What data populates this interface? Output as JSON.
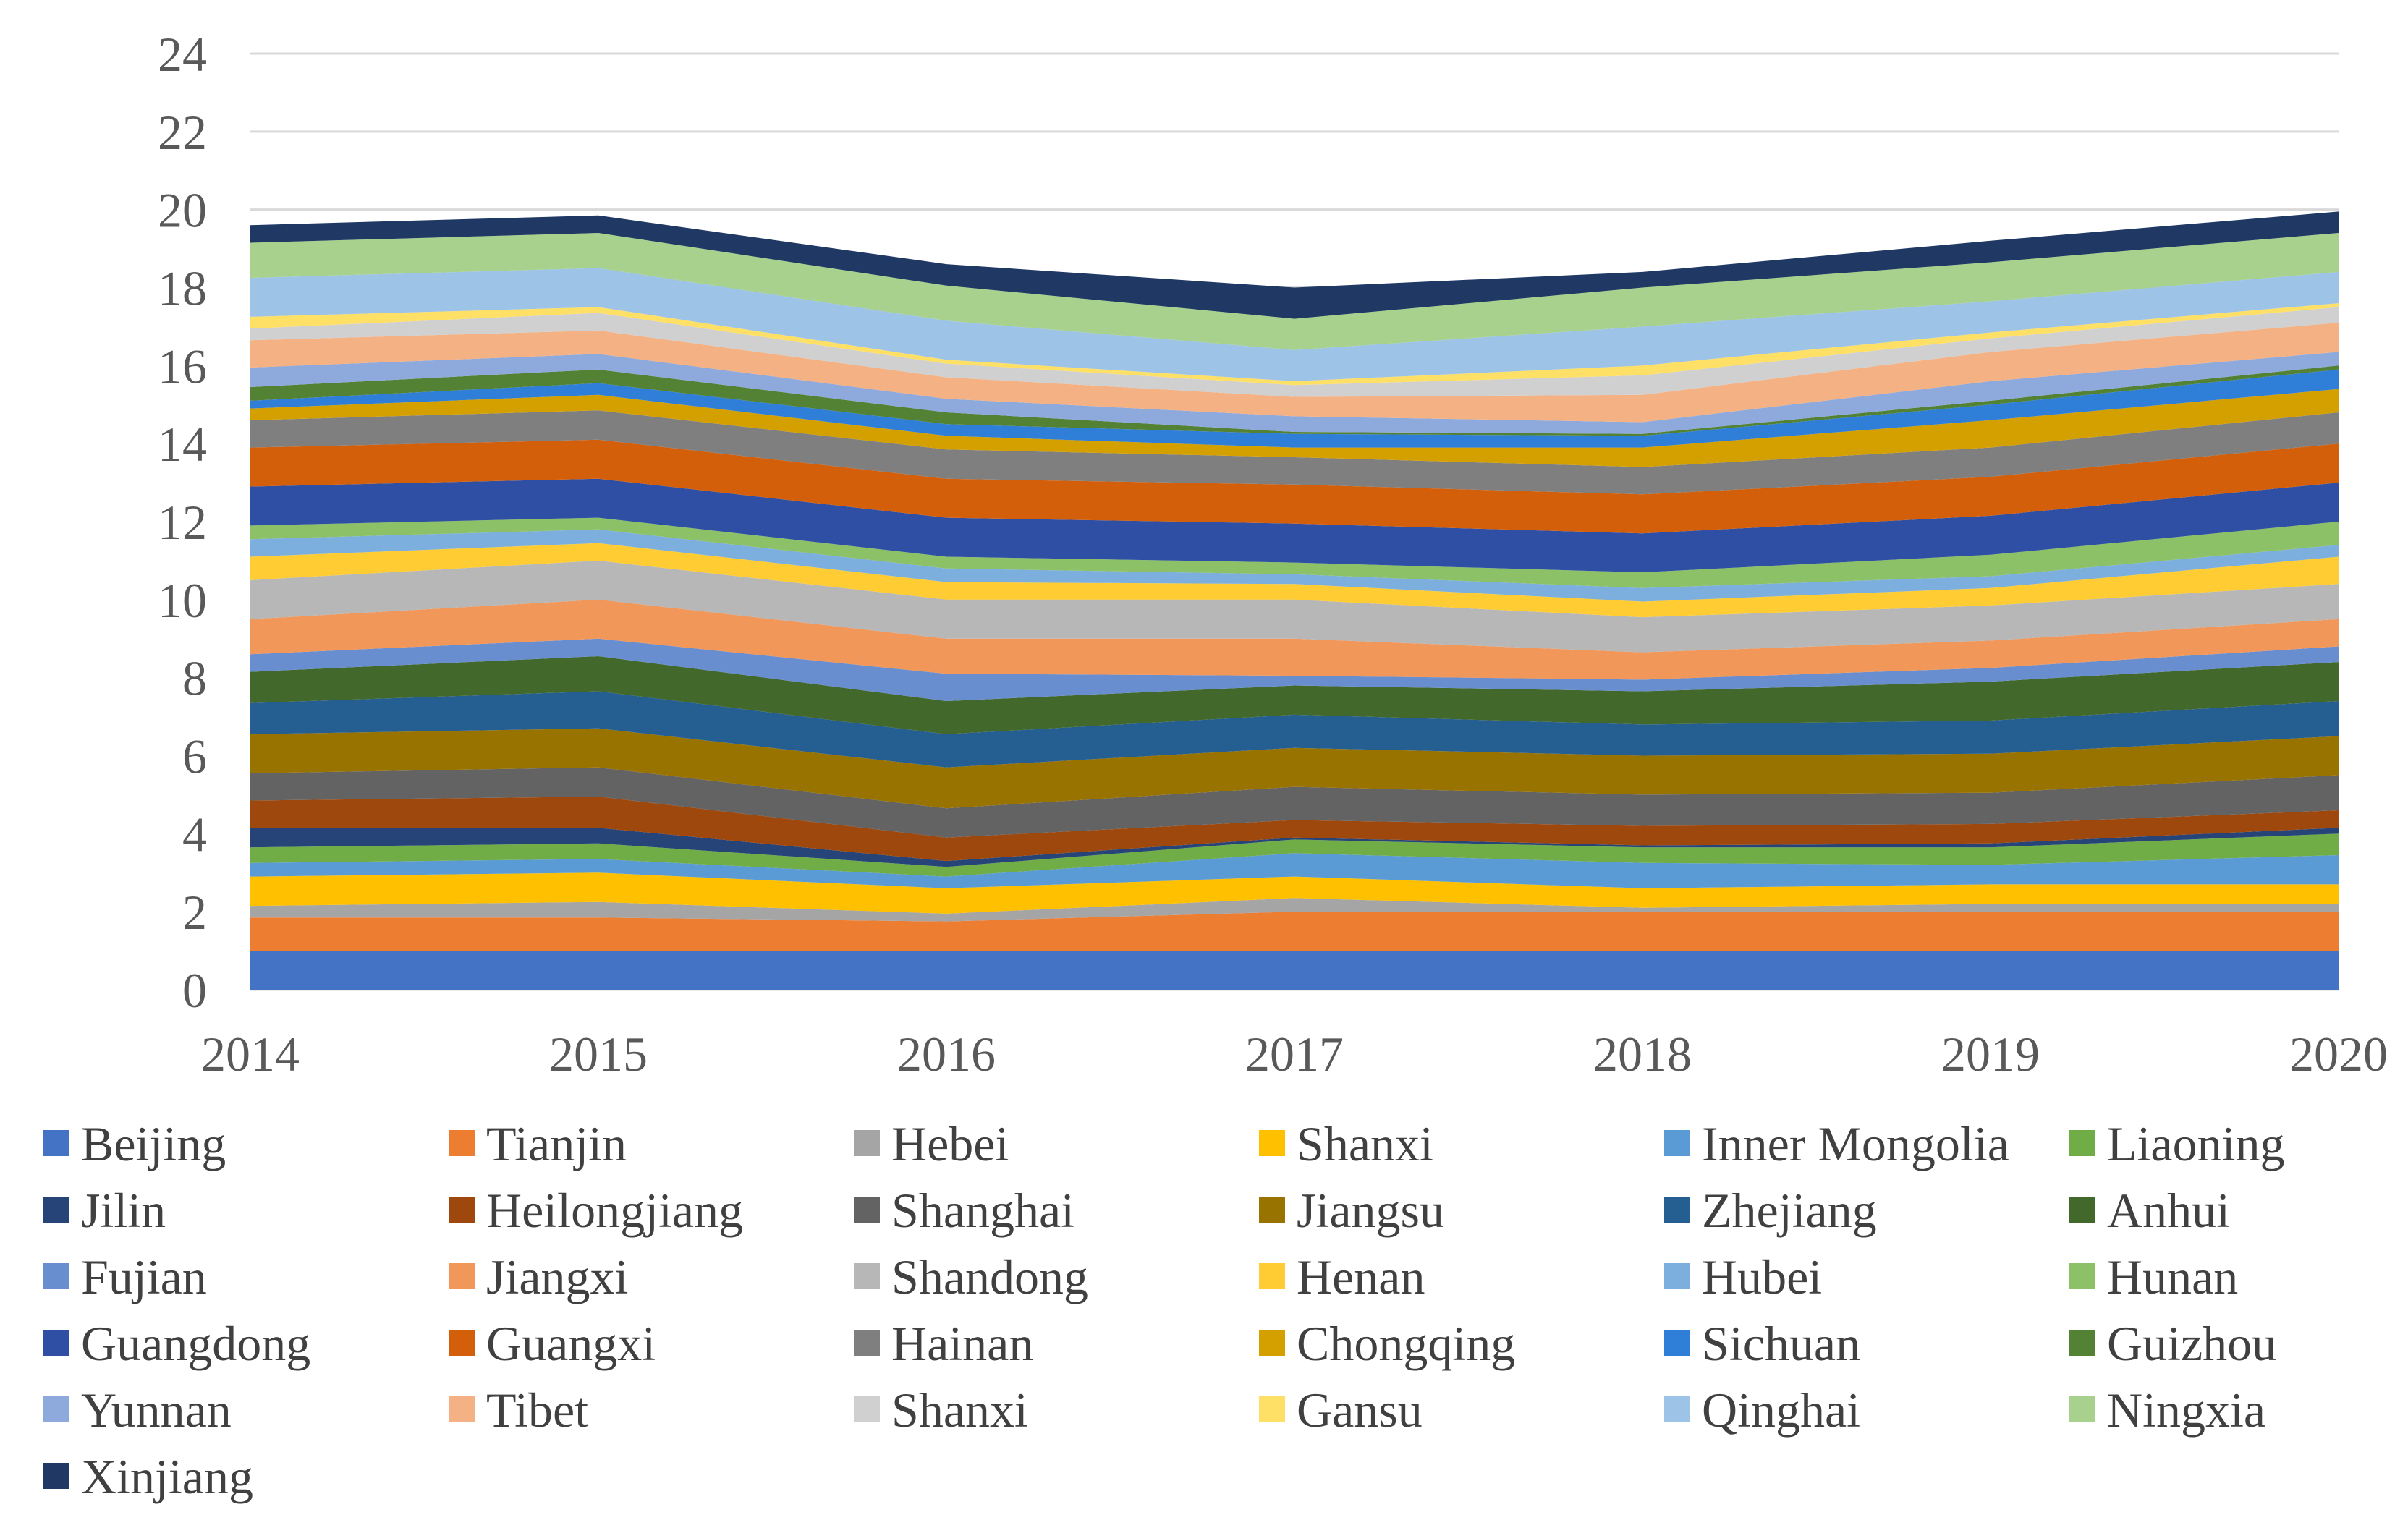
{
  "chart_data": {
    "type": "area",
    "stacked": true,
    "title": "",
    "xlabel": "",
    "ylabel": "",
    "categories": [
      "2014",
      "2015",
      "2016",
      "2017",
      "2018",
      "2019",
      "2020"
    ],
    "ylim": [
      0,
      24
    ],
    "yticks": [
      0,
      2,
      4,
      6,
      8,
      10,
      12,
      14,
      16,
      18,
      20,
      22,
      24
    ],
    "grid": true,
    "legend_position": "bottom",
    "series": [
      {
        "name": "Beijing",
        "color": "#4472C4",
        "values": [
          1.0,
          1.0,
          1.0,
          1.0,
          1.0,
          1.0,
          1.0
        ]
      },
      {
        "name": "Tianjin",
        "color": "#ED7D31",
        "values": [
          0.85,
          0.85,
          0.75,
          1.0,
          1.0,
          1.0,
          1.0
        ]
      },
      {
        "name": "Hebei",
        "color": "#A5A5A5",
        "values": [
          0.3,
          0.4,
          0.2,
          0.35,
          0.1,
          0.2,
          0.2
        ]
      },
      {
        "name": "Shanxi",
        "color": "#FFC000",
        "values": [
          0.75,
          0.75,
          0.65,
          0.55,
          0.5,
          0.5,
          0.5
        ]
      },
      {
        "name": "Inner Mongolia",
        "color": "#5B9BD5",
        "values": [
          0.35,
          0.35,
          0.3,
          0.6,
          0.65,
          0.5,
          0.75
        ]
      },
      {
        "name": "Liaoning",
        "color": "#70AD47",
        "values": [
          0.4,
          0.4,
          0.25,
          0.35,
          0.4,
          0.45,
          0.55
        ]
      },
      {
        "name": "Jilin",
        "color": "#264478",
        "values": [
          0.5,
          0.4,
          0.15,
          0.05,
          0.05,
          0.1,
          0.15
        ]
      },
      {
        "name": "Heilongjiang",
        "color": "#9E480E",
        "values": [
          0.7,
          0.8,
          0.6,
          0.45,
          0.5,
          0.5,
          0.45
        ]
      },
      {
        "name": "Shanghai",
        "color": "#636363",
        "values": [
          0.7,
          0.75,
          0.75,
          0.85,
          0.8,
          0.8,
          0.9
        ]
      },
      {
        "name": "Jiangsu",
        "color": "#997300",
        "values": [
          1.0,
          1.0,
          1.05,
          1.0,
          1.0,
          1.0,
          1.0
        ]
      },
      {
        "name": "Zhejiang",
        "color": "#255E91",
        "values": [
          0.8,
          0.95,
          0.85,
          0.85,
          0.8,
          0.85,
          0.9
        ]
      },
      {
        "name": "Anhui",
        "color": "#43682B",
        "values": [
          0.8,
          0.9,
          0.85,
          0.75,
          0.85,
          1.0,
          1.0
        ]
      },
      {
        "name": "Fujian",
        "color": "#698ED0",
        "values": [
          0.45,
          0.45,
          0.7,
          0.25,
          0.3,
          0.35,
          0.4
        ]
      },
      {
        "name": "Jiangxi",
        "color": "#F1975A",
        "values": [
          0.9,
          1.0,
          0.9,
          0.95,
          0.7,
          0.7,
          0.7
        ]
      },
      {
        "name": "Shandong",
        "color": "#B7B7B7",
        "values": [
          1.0,
          1.0,
          1.0,
          1.0,
          0.9,
          0.9,
          0.9
        ]
      },
      {
        "name": "Henan",
        "color": "#FFCD33",
        "values": [
          0.6,
          0.45,
          0.45,
          0.4,
          0.4,
          0.45,
          0.7
        ]
      },
      {
        "name": "Hubei",
        "color": "#7CAFDD",
        "values": [
          0.45,
          0.35,
          0.35,
          0.25,
          0.35,
          0.3,
          0.3
        ]
      },
      {
        "name": "Hunan",
        "color": "#8CC168",
        "values": [
          0.35,
          0.3,
          0.3,
          0.3,
          0.4,
          0.55,
          0.6
        ]
      },
      {
        "name": "Guangdong",
        "color": "#2E4FA3",
        "values": [
          1.0,
          1.0,
          1.0,
          1.0,
          1.0,
          1.0,
          1.0
        ]
      },
      {
        "name": "Guangxi",
        "color": "#D45F0A",
        "values": [
          1.0,
          1.0,
          1.0,
          1.0,
          1.0,
          1.0,
          1.0
        ]
      },
      {
        "name": "Hainan",
        "color": "#7F7F7F",
        "values": [
          0.7,
          0.75,
          0.75,
          0.7,
          0.7,
          0.75,
          0.8
        ]
      },
      {
        "name": "Chongqing",
        "color": "#D4A000",
        "values": [
          0.3,
          0.4,
          0.35,
          0.25,
          0.5,
          0.7,
          0.6
        ]
      },
      {
        "name": "Sichuan",
        "color": "#2F7ED8",
        "values": [
          0.2,
          0.3,
          0.3,
          0.35,
          0.3,
          0.4,
          0.5
        ]
      },
      {
        "name": "Guizhou",
        "color": "#548235",
        "values": [
          0.35,
          0.35,
          0.3,
          0.05,
          0.05,
          0.1,
          0.1
        ]
      },
      {
        "name": "Yunnan",
        "color": "#8EA9DB",
        "values": [
          0.5,
          0.4,
          0.35,
          0.4,
          0.3,
          0.5,
          0.35
        ]
      },
      {
        "name": "Tibet",
        "color": "#F4B183",
        "values": [
          0.7,
          0.6,
          0.55,
          0.5,
          0.7,
          0.75,
          0.75
        ]
      },
      {
        "name": "Shanxi",
        "color": "#D0D0D0",
        "values": [
          0.3,
          0.45,
          0.35,
          0.3,
          0.5,
          0.35,
          0.4
        ]
      },
      {
        "name": "Gansu",
        "color": "#FFE066",
        "values": [
          0.3,
          0.15,
          0.1,
          0.1,
          0.25,
          0.15,
          0.1
        ]
      },
      {
        "name": "Qinghai",
        "color": "#9DC3E6",
        "values": [
          1.0,
          1.0,
          1.0,
          0.8,
          1.0,
          0.8,
          0.8
        ]
      },
      {
        "name": "Ningxia",
        "color": "#A9D18E",
        "values": [
          0.9,
          0.9,
          0.9,
          0.8,
          1.0,
          1.0,
          1.0
        ]
      },
      {
        "name": "Xinjiang",
        "color": "#1F3864",
        "values": [
          0.45,
          0.45,
          0.55,
          0.8,
          0.4,
          0.55,
          0.55
        ]
      }
    ]
  }
}
